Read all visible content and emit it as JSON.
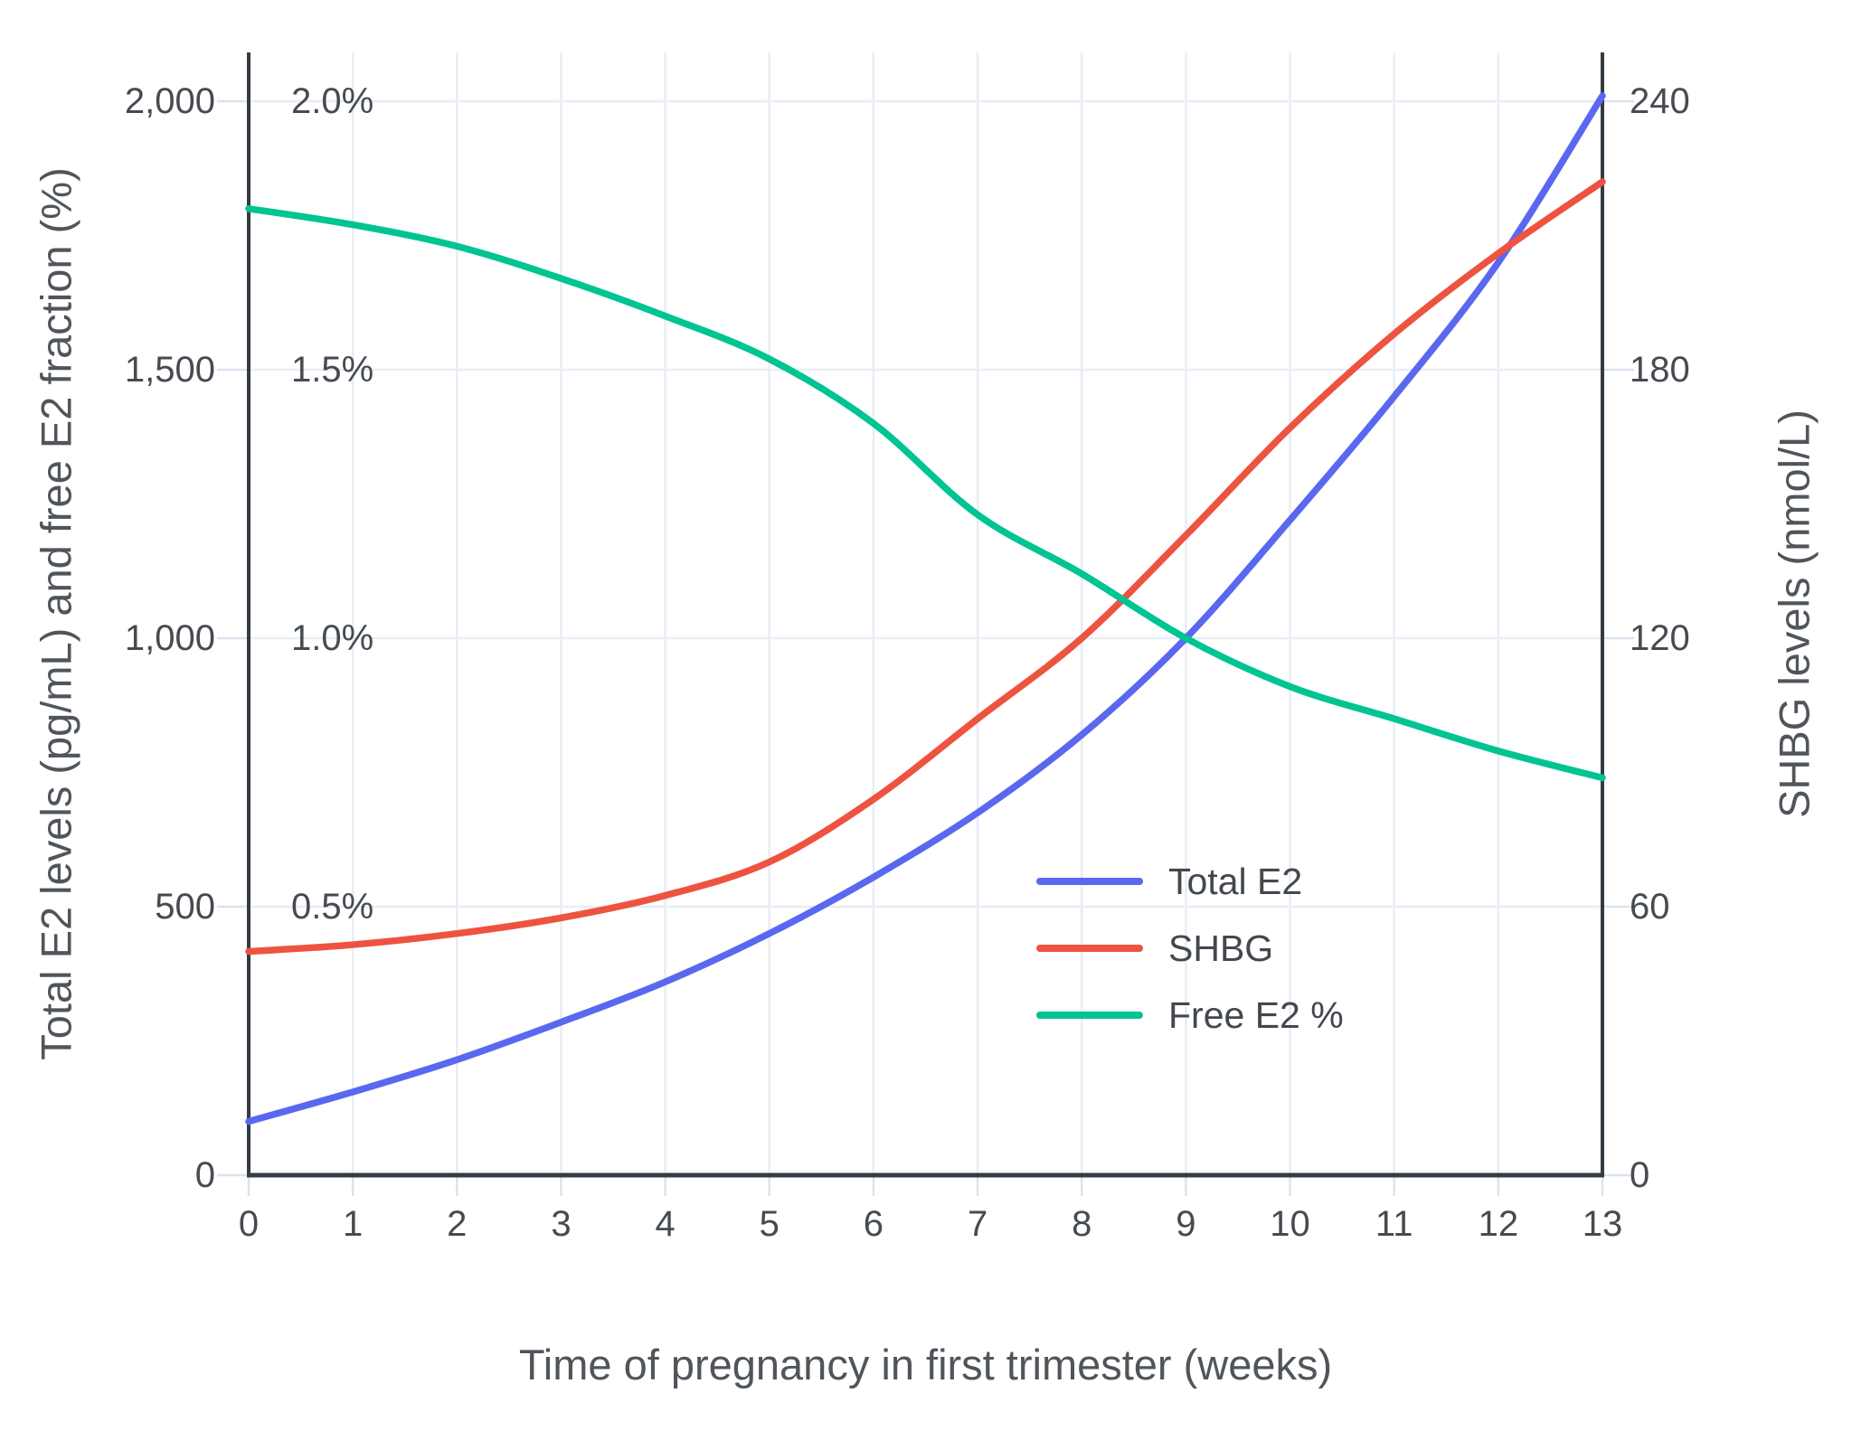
{
  "chart_data": {
    "type": "line",
    "xlabel": "Time of pregnancy in first trimester (weeks)",
    "ylabel_left": "Total E2 levels (pg/mL) and free E2 fraction (%)",
    "ylabel_right": "SHBG levels (nmol/L)",
    "x": [
      0,
      1,
      2,
      3,
      4,
      5,
      6,
      7,
      8,
      9,
      10,
      11,
      12,
      13
    ],
    "series": [
      {
        "name": "Total E2",
        "axis": "left",
        "unit": "pg/mL",
        "color": "#5A68F0",
        "values": [
          100,
          155,
          215,
          285,
          360,
          450,
          555,
          675,
          820,
          1000,
          1220,
          1450,
          1700,
          2010
        ]
      },
      {
        "name": "SHBG",
        "axis": "right",
        "unit": "nmol/L",
        "color": "#EE5340",
        "values": [
          50,
          51.5,
          54,
          57.5,
          62.5,
          70,
          84,
          102,
          120,
          143,
          167,
          188,
          206,
          222
        ]
      },
      {
        "name": "Free E2 %",
        "axis": "left_pct",
        "unit": "%",
        "color": "#00C492",
        "values": [
          1.8,
          1.77,
          1.73,
          1.67,
          1.6,
          1.52,
          1.4,
          1.23,
          1.12,
          1.0,
          0.91,
          0.85,
          0.79,
          0.74
        ]
      }
    ],
    "x_axis": {
      "min": 0,
      "max": 13,
      "tick_values": [
        0,
        1,
        2,
        3,
        4,
        5,
        6,
        7,
        8,
        9,
        10,
        11,
        12,
        13
      ],
      "tick_labels": [
        "0",
        "1",
        "2",
        "3",
        "4",
        "5",
        "6",
        "7",
        "8",
        "9",
        "10",
        "11",
        "12",
        "13"
      ]
    },
    "left_axis": {
      "min": 0,
      "max": 2090,
      "tick_values": [
        0,
        500,
        1000,
        1500,
        2000
      ],
      "tick_labels": [
        "0",
        "500",
        "1,000",
        "1,500",
        "2,000"
      ]
    },
    "pct_labels": [
      {
        "label": "0.5%",
        "value": 500
      },
      {
        "label": "1.0%",
        "value": 1000
      },
      {
        "label": "1.5%",
        "value": 1500
      },
      {
        "label": "2.0%",
        "value": 2000
      }
    ],
    "right_axis": {
      "min": 0,
      "max": 240,
      "tick_values": [
        0,
        60,
        120,
        180,
        240
      ],
      "tick_labels": [
        "0",
        "60",
        "120",
        "180",
        "240"
      ]
    },
    "legend_position": "inside-right-middle",
    "grid": true,
    "colors": {
      "grid": "#E8EDF6",
      "tick_mark": "#DCE3F0",
      "axis_line": "#343B42",
      "text": "#464B51"
    }
  }
}
